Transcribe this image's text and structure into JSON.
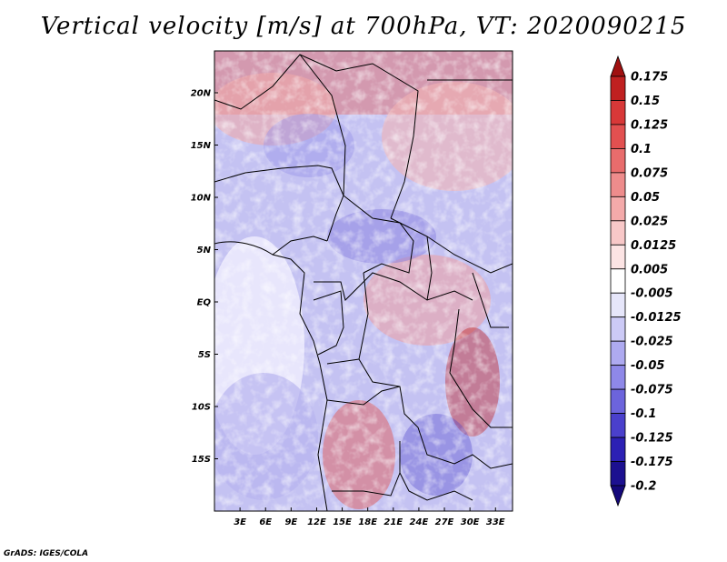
{
  "title": "Vertical velocity [m/s] at 700hPa, VT: 2020090215",
  "credit": "GrADS: IGES/COLA",
  "map": {
    "lon_range": [
      0,
      35
    ],
    "lat_range": [
      -20,
      24
    ],
    "lat_ticks": [
      {
        "value": 20,
        "label": "20N"
      },
      {
        "value": 15,
        "label": "15N"
      },
      {
        "value": 10,
        "label": "10N"
      },
      {
        "value": 5,
        "label": "5N"
      },
      {
        "value": 0,
        "label": "EQ"
      },
      {
        "value": -5,
        "label": "5S"
      },
      {
        "value": -10,
        "label": "10S"
      },
      {
        "value": -15,
        "label": "15S"
      }
    ],
    "lon_ticks": [
      {
        "value": 3,
        "label": "3E"
      },
      {
        "value": 6,
        "label": "6E"
      },
      {
        "value": 9,
        "label": "9E"
      },
      {
        "value": 12,
        "label": "12E"
      },
      {
        "value": 15,
        "label": "15E"
      },
      {
        "value": 18,
        "label": "18E"
      },
      {
        "value": 21,
        "label": "21E"
      },
      {
        "value": 24,
        "label": "24E"
      },
      {
        "value": 27,
        "label": "27E"
      },
      {
        "value": 30,
        "label": "30E"
      },
      {
        "value": 33,
        "label": "33E"
      }
    ]
  },
  "colorbar": {
    "labels": [
      "0.175",
      "0.15",
      "0.125",
      "0.1",
      "0.075",
      "0.05",
      "0.025",
      "0.0125",
      "0.005",
      "-0.005",
      "-0.0125",
      "-0.025",
      "-0.05",
      "-0.075",
      "-0.1",
      "-0.125",
      "-0.175",
      "-0.2"
    ],
    "colors": [
      "#a01010",
      "#c02020",
      "#d83838",
      "#e25050",
      "#e86c6c",
      "#ee8c8c",
      "#f4aaaa",
      "#f8c8c8",
      "#fce4e4",
      "#ffffff",
      "#e6e6fa",
      "#cccaf6",
      "#aeaaf0",
      "#8e88e8",
      "#6c64dc",
      "#4a40cc",
      "#2c20b4",
      "#1c1090",
      "#14087a"
    ]
  }
}
